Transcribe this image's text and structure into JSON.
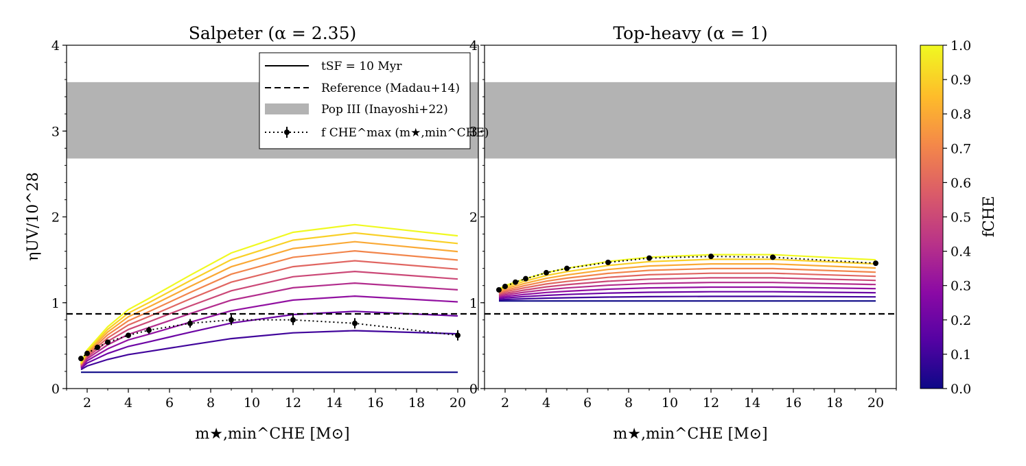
{
  "chart_data": [
    {
      "type": "line",
      "title": "Salpeter (α = 2.35)",
      "xlabel": "m★,min^CHE [M⊙]",
      "ylabel": "ηUV/10^28",
      "xlim": [
        1.0,
        21.0
      ],
      "ylim": [
        0,
        4
      ],
      "xticks": [
        2,
        4,
        6,
        8,
        10,
        12,
        14,
        16,
        18,
        20
      ],
      "yticks": [
        0,
        1,
        2,
        3,
        4
      ],
      "x": [
        1.7,
        2,
        3,
        4,
        5,
        7,
        9,
        12,
        15,
        20
      ],
      "series_min": [
        0.19,
        0.19,
        0.19,
        0.19,
        0.19,
        0.19,
        0.19,
        0.19,
        0.19,
        0.19
      ],
      "series_max": [
        0.3,
        0.45,
        0.72,
        0.92,
        1.05,
        1.32,
        1.58,
        1.82,
        1.91,
        1.78
      ],
      "series_count": 11,
      "f_che_values": [
        0.0,
        0.1,
        0.2,
        0.3,
        0.4,
        0.5,
        0.6,
        0.7,
        0.8,
        0.9,
        1.0
      ],
      "shade_curve": 0.55,
      "reference_line": 0.87,
      "band": [
        2.68,
        3.57
      ],
      "fmax_points": {
        "x": [
          1.7,
          2,
          2.5,
          3,
          4,
          5,
          7,
          9,
          12,
          15,
          20
        ],
        "y": [
          0.35,
          0.41,
          0.48,
          0.54,
          0.62,
          0.68,
          0.76,
          0.8,
          0.8,
          0.76,
          0.62
        ],
        "yerr": [
          0.01,
          0.01,
          0.02,
          0.02,
          0.03,
          0.04,
          0.05,
          0.06,
          0.06,
          0.06,
          0.06
        ]
      }
    },
    {
      "type": "line",
      "title": "Top-heavy (α = 1)",
      "xlabel": "m★,min^CHE [M⊙]",
      "ylabel": "",
      "xlim": [
        1.0,
        21.0
      ],
      "ylim": [
        0,
        4
      ],
      "xticks": [
        2,
        4,
        6,
        8,
        10,
        12,
        14,
        16,
        18,
        20
      ],
      "yticks": [
        0,
        1,
        2,
        3,
        4
      ],
      "x": [
        1.7,
        2,
        3,
        4,
        5,
        7,
        9,
        12,
        15,
        20
      ],
      "series_min": [
        1.02,
        1.02,
        1.02,
        1.02,
        1.02,
        1.02,
        1.02,
        1.02,
        1.02,
        1.02
      ],
      "series_max": [
        1.16,
        1.2,
        1.28,
        1.35,
        1.4,
        1.48,
        1.53,
        1.56,
        1.56,
        1.5
      ],
      "series_count": 11,
      "f_che_values": [
        0.0,
        0.1,
        0.2,
        0.3,
        0.4,
        0.5,
        0.6,
        0.7,
        0.8,
        0.9,
        1.0
      ],
      "shade_curve": 1.0,
      "reference_line": 0.87,
      "band": [
        2.68,
        3.57
      ],
      "fmax_points": {
        "x": [
          1.7,
          2,
          2.5,
          3,
          4,
          5,
          7,
          9,
          12,
          15,
          20
        ],
        "y": [
          1.15,
          1.19,
          1.24,
          1.28,
          1.35,
          1.4,
          1.47,
          1.52,
          1.54,
          1.53,
          1.46
        ],
        "yerr": [
          0.0,
          0.0,
          0.0,
          0.0,
          0.0,
          0.0,
          0.0,
          0.0,
          0.0,
          0.0,
          0.0
        ]
      }
    }
  ],
  "legend": [
    "tSF = 10 Myr",
    "Reference (Madau+14)",
    "Pop III (Inayoshi+22)",
    "f CHE^max (m★,min^CHE)"
  ],
  "colorbar": {
    "label": "fCHE",
    "ticks": [
      "0.0",
      "0.1",
      "0.2",
      "0.3",
      "0.4",
      "0.5",
      "0.6",
      "0.7",
      "0.8",
      "0.9",
      "1.0"
    ],
    "colormap": "plasma"
  },
  "colors": {
    "band": "#b3b3b3",
    "reference": "#000000",
    "markers": "#000000"
  }
}
